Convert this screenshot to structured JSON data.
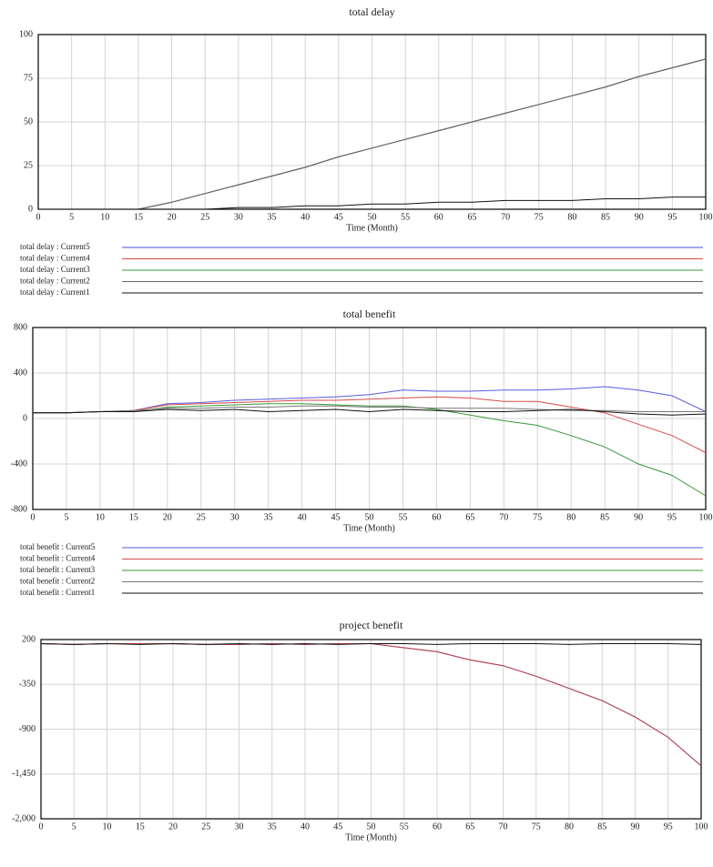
{
  "chart_data": [
    {
      "type": "line",
      "title": "total delay",
      "x_label": "Time (Month)",
      "x": [
        0,
        5,
        10,
        15,
        20,
        25,
        30,
        35,
        40,
        45,
        50,
        55,
        60,
        65,
        70,
        75,
        80,
        85,
        90,
        95,
        100
      ],
      "xlim": [
        0,
        100
      ],
      "xticks": [
        0,
        5,
        10,
        15,
        20,
        25,
        30,
        35,
        40,
        45,
        50,
        55,
        60,
        65,
        70,
        75,
        80,
        85,
        90,
        95,
        100
      ],
      "ylim": [
        0,
        100
      ],
      "yticks": [
        0,
        25,
        50,
        75,
        100
      ],
      "grid": true,
      "series": [
        {
          "name": "total delay : Current5",
          "color": "#4a4adf",
          "values": [
            0,
            0,
            0,
            0,
            4,
            9,
            14,
            19,
            24,
            30,
            35,
            40,
            45,
            50,
            55,
            60,
            65,
            70,
            76,
            81,
            86
          ]
        },
        {
          "name": "total delay : Current4",
          "color": "#d94a4a",
          "values": [
            0,
            0,
            0,
            0,
            4,
            9,
            14,
            19,
            24,
            30,
            35,
            40,
            45,
            50,
            55,
            60,
            65,
            70,
            76,
            81,
            86
          ]
        },
        {
          "name": "total delay : Current3",
          "color": "#3a9a3a",
          "values": [
            0,
            0,
            0,
            0,
            4,
            9,
            14,
            19,
            24,
            30,
            35,
            40,
            45,
            50,
            55,
            60,
            65,
            70,
            76,
            81,
            86
          ]
        },
        {
          "name": "total delay : Current2",
          "color": "#666666",
          "values": [
            0,
            0,
            0,
            0,
            4,
            9,
            14,
            19,
            24,
            30,
            35,
            40,
            45,
            50,
            55,
            60,
            65,
            70,
            76,
            81,
            86
          ]
        },
        {
          "name": "total delay : Current1",
          "color": "#111111",
          "values": [
            0,
            0,
            0,
            0,
            0,
            0,
            1,
            1,
            2,
            2,
            3,
            3,
            4,
            4,
            5,
            5,
            5,
            6,
            6,
            7,
            7
          ]
        }
      ]
    },
    {
      "type": "line",
      "title": "total benefit",
      "x_label": "Time (Month)",
      "x": [
        0,
        5,
        10,
        15,
        20,
        25,
        30,
        35,
        40,
        45,
        50,
        55,
        60,
        65,
        70,
        75,
        80,
        85,
        90,
        95,
        100
      ],
      "xlim": [
        0,
        100
      ],
      "xticks": [
        0,
        5,
        10,
        15,
        20,
        25,
        30,
        35,
        40,
        45,
        50,
        55,
        60,
        65,
        70,
        75,
        80,
        85,
        90,
        95,
        100
      ],
      "ylim": [
        -800,
        800
      ],
      "yticks": [
        -800,
        -400,
        0,
        400,
        800
      ],
      "grid": true,
      "series": [
        {
          "name": "total benefit : Current5",
          "color": "#5a5ae0",
          "values": [
            50,
            50,
            60,
            70,
            130,
            140,
            160,
            170,
            180,
            190,
            210,
            250,
            240,
            240,
            250,
            250,
            260,
            280,
            250,
            200,
            60
          ]
        },
        {
          "name": "total benefit : Current4",
          "color": "#d94a4a",
          "values": [
            50,
            50,
            60,
            70,
            120,
            130,
            140,
            150,
            160,
            160,
            170,
            180,
            190,
            180,
            150,
            150,
            100,
            50,
            -50,
            -150,
            -300
          ]
        },
        {
          "name": "total benefit : Current3",
          "color": "#3a9a3a",
          "values": [
            50,
            50,
            60,
            60,
            100,
            110,
            120,
            130,
            130,
            120,
            110,
            110,
            80,
            30,
            -20,
            -60,
            -150,
            -250,
            -400,
            -500,
            -680
          ]
        },
        {
          "name": "total benefit : Current2",
          "color": "#777777",
          "values": [
            50,
            50,
            60,
            70,
            90,
            90,
            100,
            100,
            110,
            110,
            100,
            100,
            90,
            90,
            90,
            80,
            70,
            70,
            60,
            60,
            60
          ]
        },
        {
          "name": "total benefit : Current1",
          "color": "#111111",
          "values": [
            50,
            50,
            60,
            60,
            80,
            70,
            80,
            60,
            70,
            80,
            60,
            80,
            70,
            60,
            60,
            70,
            80,
            60,
            40,
            30,
            40
          ]
        }
      ]
    },
    {
      "type": "line",
      "title": "project benefit",
      "x_label": "Time (Month)",
      "x": [
        0,
        5,
        10,
        15,
        20,
        25,
        30,
        35,
        40,
        45,
        50,
        55,
        60,
        65,
        70,
        75,
        80,
        85,
        90,
        95,
        100
      ],
      "xlim": [
        0,
        100
      ],
      "xticks": [
        0,
        5,
        10,
        15,
        20,
        25,
        30,
        35,
        40,
        45,
        50,
        55,
        60,
        65,
        70,
        75,
        80,
        85,
        90,
        95,
        100
      ],
      "ylim": [
        -2000,
        200
      ],
      "yticks": [
        200,
        -350,
        -900,
        {
          "value": -1450,
          "label": "-1,450"
        },
        {
          "value": -2000,
          "label": "-2,000"
        }
      ],
      "grid": true,
      "series": [
        {
          "color": "#3a3ad0",
          "values": [
            150,
            140,
            150,
            150,
            150,
            140,
            140,
            150,
            140,
            150,
            150,
            100,
            50,
            -50,
            -120,
            -250,
            -400,
            -550,
            -750,
            -1000,
            -1350
          ]
        },
        {
          "color": "#c04040",
          "values": [
            150,
            140,
            150,
            150,
            150,
            140,
            140,
            150,
            140,
            150,
            150,
            100,
            50,
            -50,
            -120,
            -250,
            -400,
            -550,
            -750,
            -1000,
            -1350
          ]
        },
        {
          "color": "#111111",
          "values": [
            150,
            140,
            150,
            140,
            150,
            140,
            150,
            140,
            150,
            140,
            150,
            150,
            140,
            150,
            150,
            150,
            140,
            150,
            150,
            150,
            140
          ]
        }
      ]
    }
  ]
}
